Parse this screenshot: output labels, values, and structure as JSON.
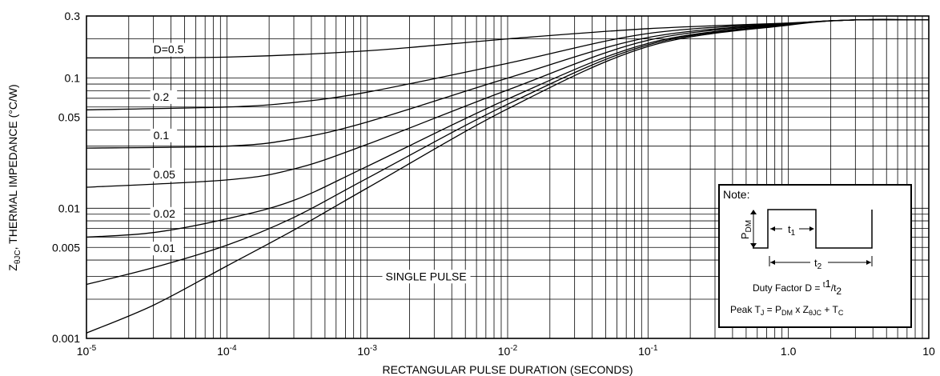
{
  "chart_data": {
    "type": "line",
    "x_scale": "log",
    "y_scale": "log",
    "xlim": [
      1e-05,
      10
    ],
    "ylim": [
      0.001,
      0.3
    ],
    "grid": true,
    "xlabel": "RECTANGULAR PULSE DURATION (SECONDS)",
    "ylabel": {
      "z": "Z",
      "sub": "θJC",
      "rest": ", THERMAL IMPEDANCE (°C/W)"
    },
    "x_ticks": [
      {
        "value": 1e-05,
        "base": "10",
        "exp": "-5"
      },
      {
        "value": 0.0001,
        "base": "10",
        "exp": "-4"
      },
      {
        "value": 0.001,
        "base": "10",
        "exp": "-3"
      },
      {
        "value": 0.01,
        "base": "10",
        "exp": "-2"
      },
      {
        "value": 0.1,
        "base": "10",
        "exp": "-1"
      },
      {
        "value": 1,
        "base": "1.0",
        "exp": ""
      },
      {
        "value": 10,
        "base": "10",
        "exp": ""
      }
    ],
    "y_ticks": [
      {
        "value": 0.3,
        "label": "0.3"
      },
      {
        "value": 0.1,
        "label": "0.1"
      },
      {
        "value": 0.05,
        "label": "0.05"
      },
      {
        "value": 0.01,
        "label": "0.01"
      },
      {
        "value": 0.005,
        "label": "0.005"
      },
      {
        "value": 0.001,
        "label": "0.001"
      }
    ],
    "series": [
      {
        "name": "D=0.5",
        "label_at": [
          3e-05,
          0.155
        ],
        "x": [
          1e-05,
          0.0001,
          0.001,
          0.01,
          0.1,
          1,
          3,
          10
        ],
        "y": [
          0.143,
          0.145,
          0.162,
          0.2,
          0.24,
          0.265,
          0.28,
          0.28
        ]
      },
      {
        "name": "0.2",
        "label_at": [
          3e-05,
          0.067
        ],
        "x": [
          1e-05,
          0.0001,
          0.0003,
          0.001,
          0.01,
          0.1,
          1,
          3,
          10
        ],
        "y": [
          0.057,
          0.06,
          0.065,
          0.078,
          0.13,
          0.22,
          0.263,
          0.28,
          0.28
        ]
      },
      {
        "name": "0.1",
        "label_at": [
          3e-05,
          0.034
        ],
        "x": [
          1e-05,
          0.0001,
          0.0003,
          0.001,
          0.01,
          0.1,
          1,
          3,
          10
        ],
        "y": [
          0.029,
          0.03,
          0.034,
          0.046,
          0.1,
          0.205,
          0.262,
          0.28,
          0.28
        ]
      },
      {
        "name": "0.05",
        "label_at": [
          3e-05,
          0.017
        ],
        "x": [
          1e-05,
          0.0001,
          0.0003,
          0.001,
          0.01,
          0.1,
          1,
          3,
          10
        ],
        "y": [
          0.0145,
          0.0165,
          0.02,
          0.031,
          0.081,
          0.195,
          0.26,
          0.28,
          0.28
        ]
      },
      {
        "name": "0.02",
        "label_at": [
          3e-05,
          0.0085
        ],
        "x": [
          1e-05,
          3e-05,
          0.0001,
          0.0003,
          0.001,
          0.01,
          0.1,
          1,
          3,
          10
        ],
        "y": [
          0.006,
          0.0065,
          0.0083,
          0.0115,
          0.021,
          0.069,
          0.185,
          0.258,
          0.28,
          0.28
        ]
      },
      {
        "name": "0.01",
        "label_at": [
          3e-05,
          0.0046
        ],
        "x": [
          1e-05,
          3e-05,
          0.0001,
          0.0003,
          0.001,
          0.01,
          0.1,
          1,
          3,
          10
        ],
        "y": [
          0.0026,
          0.0035,
          0.0052,
          0.0085,
          0.017,
          0.063,
          0.18,
          0.257,
          0.28,
          0.28
        ]
      },
      {
        "name": "SINGLE PULSE",
        "label_at": [
          0.00135,
          0.0028
        ],
        "x": [
          1e-05,
          3e-05,
          0.0001,
          0.0003,
          0.001,
          0.01,
          0.1,
          1,
          3,
          10
        ],
        "y": [
          0.0011,
          0.0018,
          0.0036,
          0.0068,
          0.0143,
          0.058,
          0.175,
          0.255,
          0.28,
          0.28
        ]
      }
    ],
    "note": {
      "title": "Note:",
      "pdm": {
        "main": "P",
        "sub": "DM"
      },
      "t1": {
        "main": "t",
        "sub": "1"
      },
      "t2": {
        "main": "t",
        "sub": "2"
      },
      "duty": {
        "prefix": "Duty Factor  D = ",
        "num": "1",
        "den": "2",
        "t": "t",
        "slash": "/"
      },
      "peak": {
        "prefix": "Peak T",
        "j": "J",
        "eq": " = P",
        "dm": "DM",
        "x": " x Z",
        "theta": "θJC",
        "plus": " + T",
        "c": "C"
      }
    }
  }
}
